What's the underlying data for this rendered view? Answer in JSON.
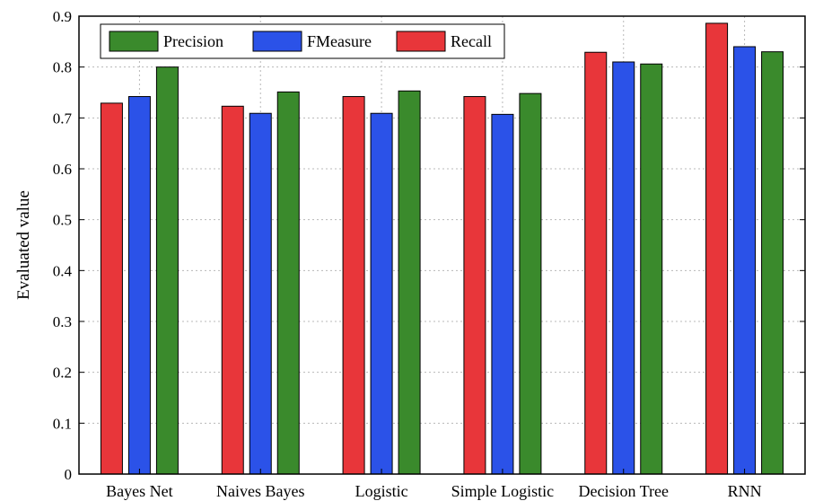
{
  "chart_data": {
    "type": "bar",
    "title": "",
    "xlabel": "",
    "ylabel": "Evaluated value",
    "ylim": [
      0,
      0.9
    ],
    "yticks": [
      "0",
      "0.1",
      "0.2",
      "0.3",
      "0.4",
      "0.5",
      "0.6",
      "0.7",
      "0.8",
      "0.9"
    ],
    "grid": true,
    "legend_position": "top-left",
    "categories": [
      "Bayes Net",
      "Naives Bayes",
      "Logistic",
      "Simple Logistic",
      "Decision Tree",
      "RNN"
    ],
    "series": [
      {
        "name": "Recall",
        "color": "#e8363a",
        "values": [
          0.729,
          0.723,
          0.742,
          0.742,
          0.829,
          0.886
        ]
      },
      {
        "name": "FMeasure",
        "color": "#2b52e8",
        "values": [
          0.742,
          0.709,
          0.709,
          0.707,
          0.81,
          0.84
        ]
      },
      {
        "name": "Precision",
        "color": "#3a8a2c",
        "values": [
          0.8,
          0.751,
          0.753,
          0.748,
          0.806,
          0.83
        ]
      }
    ],
    "legend_order": [
      "Precision",
      "FMeasure",
      "Recall"
    ]
  }
}
